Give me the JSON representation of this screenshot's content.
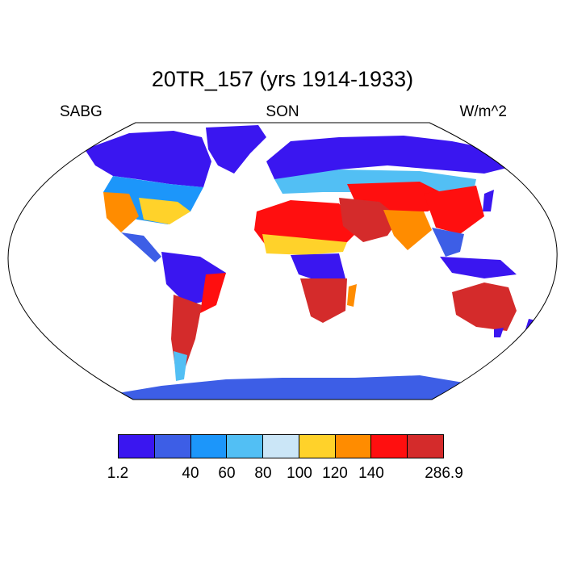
{
  "title": "20TR_157 (yrs 1914-1933)",
  "subtitles": {
    "left": "SABG",
    "center": "SON",
    "right": "W/m^2"
  },
  "colorbar": {
    "colors": [
      "#3a16f0",
      "#3d5ee6",
      "#1c96fa",
      "#52bff4",
      "#cbe6f7",
      "#ffd22a",
      "#ff8c00",
      "#ff0f0f",
      "#d42b2b"
    ],
    "labels": [
      "1.2",
      "40",
      "60",
      "80",
      "100",
      "120",
      "140",
      "286.9"
    ]
  },
  "map": {
    "projection": "Robinson",
    "ocean_color": "#ffffff",
    "land_regions": [
      {
        "name": "north-america",
        "value_class": 1
      },
      {
        "name": "greenland",
        "value_class": 0
      },
      {
        "name": "south-america",
        "value_class": 1
      },
      {
        "name": "africa",
        "value_class": 7
      },
      {
        "name": "europe-asia",
        "value_class": 1
      },
      {
        "name": "arabia",
        "value_class": 8
      },
      {
        "name": "india",
        "value_class": 6
      },
      {
        "name": "australia",
        "value_class": 7
      },
      {
        "name": "antarctica",
        "value_class": 1
      }
    ]
  }
}
